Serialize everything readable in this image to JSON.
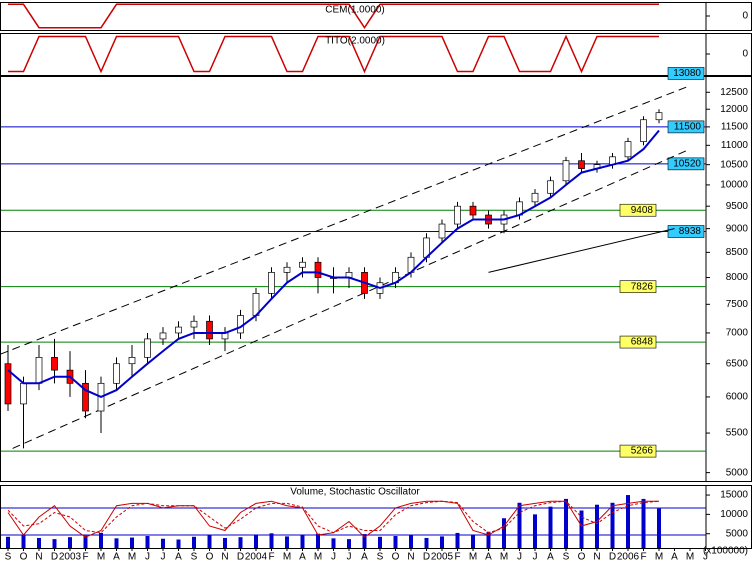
{
  "chart_data": [
    {
      "type": "line",
      "title": "CEM(1.0000)",
      "color": "#cc0000",
      "ylim": [
        -1.2,
        1.2
      ],
      "yticks": [
        0
      ],
      "values": [
        1,
        1,
        -1,
        -1,
        -1,
        -1,
        -1,
        1,
        1,
        1,
        1,
        1,
        1,
        1,
        1,
        1,
        1,
        1,
        1,
        1,
        1,
        1,
        1,
        -1,
        1,
        1,
        1,
        1,
        1,
        1,
        1,
        1,
        1,
        1,
        1,
        1,
        1,
        1,
        1,
        1,
        1,
        1,
        1,
        null,
        null,
        null
      ]
    },
    {
      "type": "line",
      "title": "TITO(2.0000)",
      "color": "#cc0000",
      "ylim": [
        -1.2,
        1.2
      ],
      "yticks": [
        0
      ],
      "values": [
        -1,
        -1,
        1,
        1,
        1,
        1,
        -1,
        1,
        1,
        1,
        1,
        1,
        -1,
        -1,
        1,
        1,
        1,
        1,
        -1,
        -1,
        1,
        1,
        1,
        -1,
        1,
        1,
        1,
        1,
        1,
        -1,
        -1,
        1,
        1,
        -1,
        -1,
        -1,
        1,
        -1,
        1,
        1,
        1,
        1,
        1,
        null,
        null,
        null
      ]
    },
    {
      "type": "candlestick",
      "log_scale": true,
      "ylim": [
        4900,
        13000
      ],
      "yticks": [
        5000,
        5500,
        6000,
        6500,
        7000,
        7500,
        8000,
        8500,
        9000,
        9500,
        10000,
        10500,
        11000,
        11500,
        12000,
        12500
      ],
      "up_color": "#ffffff",
      "down_color": "#ff0000",
      "open": [
        6500,
        5900,
        6200,
        6600,
        6400,
        6200,
        5800,
        6200,
        6500,
        6600,
        6900,
        7000,
        7100,
        7200,
        6900,
        7000,
        7300,
        7700,
        8100,
        8200,
        8300,
        8000,
        8000,
        8100,
        7700,
        7900,
        8100,
        8400,
        8800,
        9100,
        9500,
        9300,
        9100,
        9300,
        9600,
        9800,
        10100,
        10600,
        10400,
        10500,
        10700,
        11100,
        11700,
        null,
        null,
        null
      ],
      "high": [
        6800,
        6300,
        6800,
        6900,
        6700,
        6400,
        6300,
        6600,
        6800,
        7000,
        7100,
        7200,
        7300,
        7300,
        7100,
        7400,
        7800,
        8200,
        8300,
        8400,
        8400,
        8200,
        8200,
        8200,
        8000,
        8200,
        8500,
        8900,
        9200,
        9600,
        9600,
        9400,
        9400,
        9700,
        9900,
        10200,
        10700,
        10800,
        10600,
        10800,
        11200,
        11800,
        12000,
        null,
        null,
        null
      ],
      "low": [
        5800,
        5300,
        6100,
        6200,
        6000,
        5700,
        5500,
        6100,
        6300,
        6500,
        6800,
        6900,
        6900,
        6800,
        6700,
        6900,
        7200,
        7600,
        7900,
        8000,
        7700,
        7700,
        7800,
        7600,
        7600,
        7800,
        8000,
        8300,
        8700,
        9000,
        9200,
        9000,
        8900,
        9200,
        9500,
        9700,
        10000,
        10300,
        10300,
        10400,
        10600,
        11000,
        11600,
        null,
        null,
        null
      ],
      "close": [
        5900,
        6200,
        6600,
        6400,
        6200,
        5800,
        6200,
        6500,
        6600,
        6900,
        7000,
        7100,
        7200,
        6900,
        7000,
        7300,
        7700,
        8100,
        8200,
        8300,
        8000,
        8000,
        8100,
        7700,
        7900,
        8100,
        8400,
        8800,
        9100,
        9500,
        9300,
        9100,
        9300,
        9600,
        9800,
        10100,
        10600,
        10400,
        10500,
        10700,
        11100,
        11700,
        11900,
        null,
        null,
        null
      ],
      "lines": [
        {
          "color": "#0000cc",
          "values": [
            6400,
            6200,
            6200,
            6300,
            6300,
            6100,
            6000,
            6100,
            6300,
            6500,
            6700,
            6900,
            7000,
            7000,
            7000,
            7100,
            7300,
            7600,
            7900,
            8100,
            8100,
            8000,
            8000,
            7900,
            7800,
            7900,
            8100,
            8400,
            8700,
            9000,
            9200,
            9200,
            9200,
            9300,
            9500,
            9700,
            10000,
            10300,
            10400,
            10500,
            10600,
            10900,
            11400,
            null,
            null,
            null
          ]
        }
      ],
      "trendlines": [
        {
          "color": "#000000",
          "dashed": true,
          "x": [
            -0.5,
            44
          ],
          "values": [
            6650,
            12700
          ]
        },
        {
          "color": "#000000",
          "dashed": true,
          "x": [
            0.3,
            44
          ],
          "values": [
            5300,
            10900
          ]
        },
        {
          "color": "#000000",
          "dashed": false,
          "x": [
            31,
            43
          ],
          "values": [
            8100,
            9000
          ]
        }
      ],
      "levels": [
        {
          "value": 13080,
          "line": false,
          "box_color": "#33ccff"
        },
        {
          "value": 11500,
          "color": "#0000cc",
          "box_color": "#33ccff"
        },
        {
          "value": 10520,
          "color": "#0000cc",
          "box_color": "#33ccff"
        },
        {
          "value": 9408,
          "color": "#008000",
          "box_color": "#ffff66"
        },
        {
          "value": 8938,
          "color": "#0000cc",
          "box_color": "#33ccff"
        },
        {
          "value": 7826,
          "color": "#008000",
          "box_color": "#ffff66"
        },
        {
          "value": 6848,
          "color": "#008000",
          "box_color": "#ffff66"
        },
        {
          "value": 5266,
          "color": "#008000",
          "box_color": "#ffff66"
        }
      ]
    },
    {
      "type": "bar",
      "title": "Volume, Stochastic Oscillator",
      "color": "#0000cc",
      "unit_label": "(x100000)",
      "categories": [
        "S",
        "O",
        "N",
        "D",
        "2003",
        "F",
        "M",
        "A",
        "M",
        "J",
        "J",
        "A",
        "S",
        "O",
        "N",
        "D",
        "2004",
        "F",
        "M",
        "A",
        "M",
        "J",
        "J",
        "A",
        "S",
        "O",
        "N",
        "D",
        "2005",
        "F",
        "M",
        "A",
        "M",
        "J",
        "J",
        "A",
        "S",
        "O",
        "N",
        "D",
        "2006",
        "F",
        "M",
        "A",
        "M",
        "J"
      ],
      "values": [
        4200,
        4800,
        3900,
        3600,
        4100,
        4500,
        5200,
        3800,
        4000,
        4400,
        3700,
        3500,
        4200,
        4600,
        3900,
        4100,
        4800,
        5100,
        4300,
        4700,
        5000,
        3800,
        3600,
        4900,
        4200,
        4400,
        4600,
        3900,
        4300,
        5200,
        4800,
        5500,
        9000,
        13000,
        10000,
        12000,
        14000,
        11000,
        12500,
        13000,
        15000,
        14000,
        11500,
        null,
        null,
        null
      ],
      "ylim": [
        1300,
        17600
      ],
      "yticks": [
        5000,
        10000,
        15000
      ],
      "y2lim": [
        -9,
        131
      ],
      "y2_levels": [
        20,
        80
      ],
      "level_color": "#0000cc",
      "series": [
        {
          "color": "#cc0000",
          "axis": "y2",
          "values": [
            70,
            20,
            60,
            85,
            40,
            15,
            30,
            85,
            90,
            90,
            80,
            85,
            85,
            40,
            30,
            70,
            90,
            95,
            85,
            80,
            20,
            25,
            50,
            15,
            40,
            80,
            90,
            95,
            95,
            90,
            30,
            20,
            40,
            85,
            90,
            95,
            95,
            40,
            50,
            85,
            90,
            95,
            95,
            null,
            null,
            null
          ]
        },
        {
          "color": "#cc0000",
          "axis": "y2",
          "dashed": true,
          "values": [
            75,
            40,
            45,
            70,
            60,
            30,
            25,
            60,
            85,
            90,
            85,
            85,
            85,
            60,
            35,
            55,
            80,
            90,
            90,
            82,
            40,
            25,
            40,
            30,
            30,
            65,
            85,
            92,
            95,
            92,
            50,
            25,
            35,
            70,
            85,
            92,
            95,
            60,
            45,
            70,
            85,
            92,
            95,
            null,
            null,
            null
          ]
        }
      ]
    }
  ]
}
